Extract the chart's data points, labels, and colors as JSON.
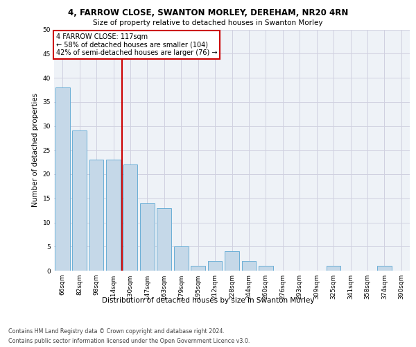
{
  "title1": "4, FARROW CLOSE, SWANTON MORLEY, DEREHAM, NR20 4RN",
  "title2": "Size of property relative to detached houses in Swanton Morley",
  "xlabel": "Distribution of detached houses by size in Swanton Morley",
  "ylabel": "Number of detached properties",
  "categories": [
    "66sqm",
    "82sqm",
    "98sqm",
    "114sqm",
    "130sqm",
    "147sqm",
    "163sqm",
    "179sqm",
    "195sqm",
    "212sqm",
    "228sqm",
    "244sqm",
    "260sqm",
    "276sqm",
    "293sqm",
    "309sqm",
    "325sqm",
    "341sqm",
    "358sqm",
    "374sqm",
    "390sqm"
  ],
  "values": [
    38,
    29,
    23,
    23,
    22,
    14,
    13,
    5,
    1,
    2,
    4,
    2,
    1,
    0,
    0,
    0,
    1,
    0,
    0,
    1,
    0
  ],
  "bar_color": "#c5d8e8",
  "bar_edge_color": "#6aaed6",
  "vline_x": 3.5,
  "vline_color": "#cc0000",
  "annotation_text": "4 FARROW CLOSE: 117sqm\n← 58% of detached houses are smaller (104)\n42% of semi-detached houses are larger (76) →",
  "annotation_box_color": "#ffffff",
  "annotation_box_edge": "#cc0000",
  "ylim": [
    0,
    50
  ],
  "yticks": [
    0,
    5,
    10,
    15,
    20,
    25,
    30,
    35,
    40,
    45,
    50
  ],
  "footnote_line1": "Contains HM Land Registry data © Crown copyright and database right 2024.",
  "footnote_line2": "Contains public sector information licensed under the Open Government Licence v3.0.",
  "grid_color": "#d0d0e0",
  "background_color": "#eef2f7",
  "title1_fontsize": 8.5,
  "title2_fontsize": 7.5,
  "ylabel_fontsize": 7.5,
  "xlabel_fontsize": 7.5,
  "tick_fontsize": 6.5,
  "ann_fontsize": 7.0,
  "footnote_fontsize": 5.8
}
